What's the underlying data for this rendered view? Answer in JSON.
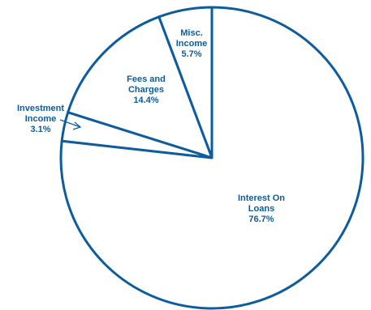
{
  "chart_data": {
    "type": "pie",
    "title": "",
    "slices": [
      {
        "name_lines": [
          "Misc.",
          "Income"
        ],
        "value": 5.7,
        "value_label": "5.7%"
      },
      {
        "name_lines": [
          "Fees and",
          "Charges"
        ],
        "value": 14.4,
        "value_label": "14.4%"
      },
      {
        "name_lines": [
          "Investment",
          "Income"
        ],
        "value": 3.1,
        "value_label": "3.1%"
      },
      {
        "name_lines": [
          "Interest On",
          "Loans"
        ],
        "value": 76.7,
        "value_label": "76.7%"
      }
    ],
    "start": "12 o'clock",
    "direction": "counterclockwise",
    "legend": "none",
    "colors": {
      "stroke": "#0d5c9e",
      "fill": "#ffffff",
      "text": "#0d5c9e"
    }
  }
}
